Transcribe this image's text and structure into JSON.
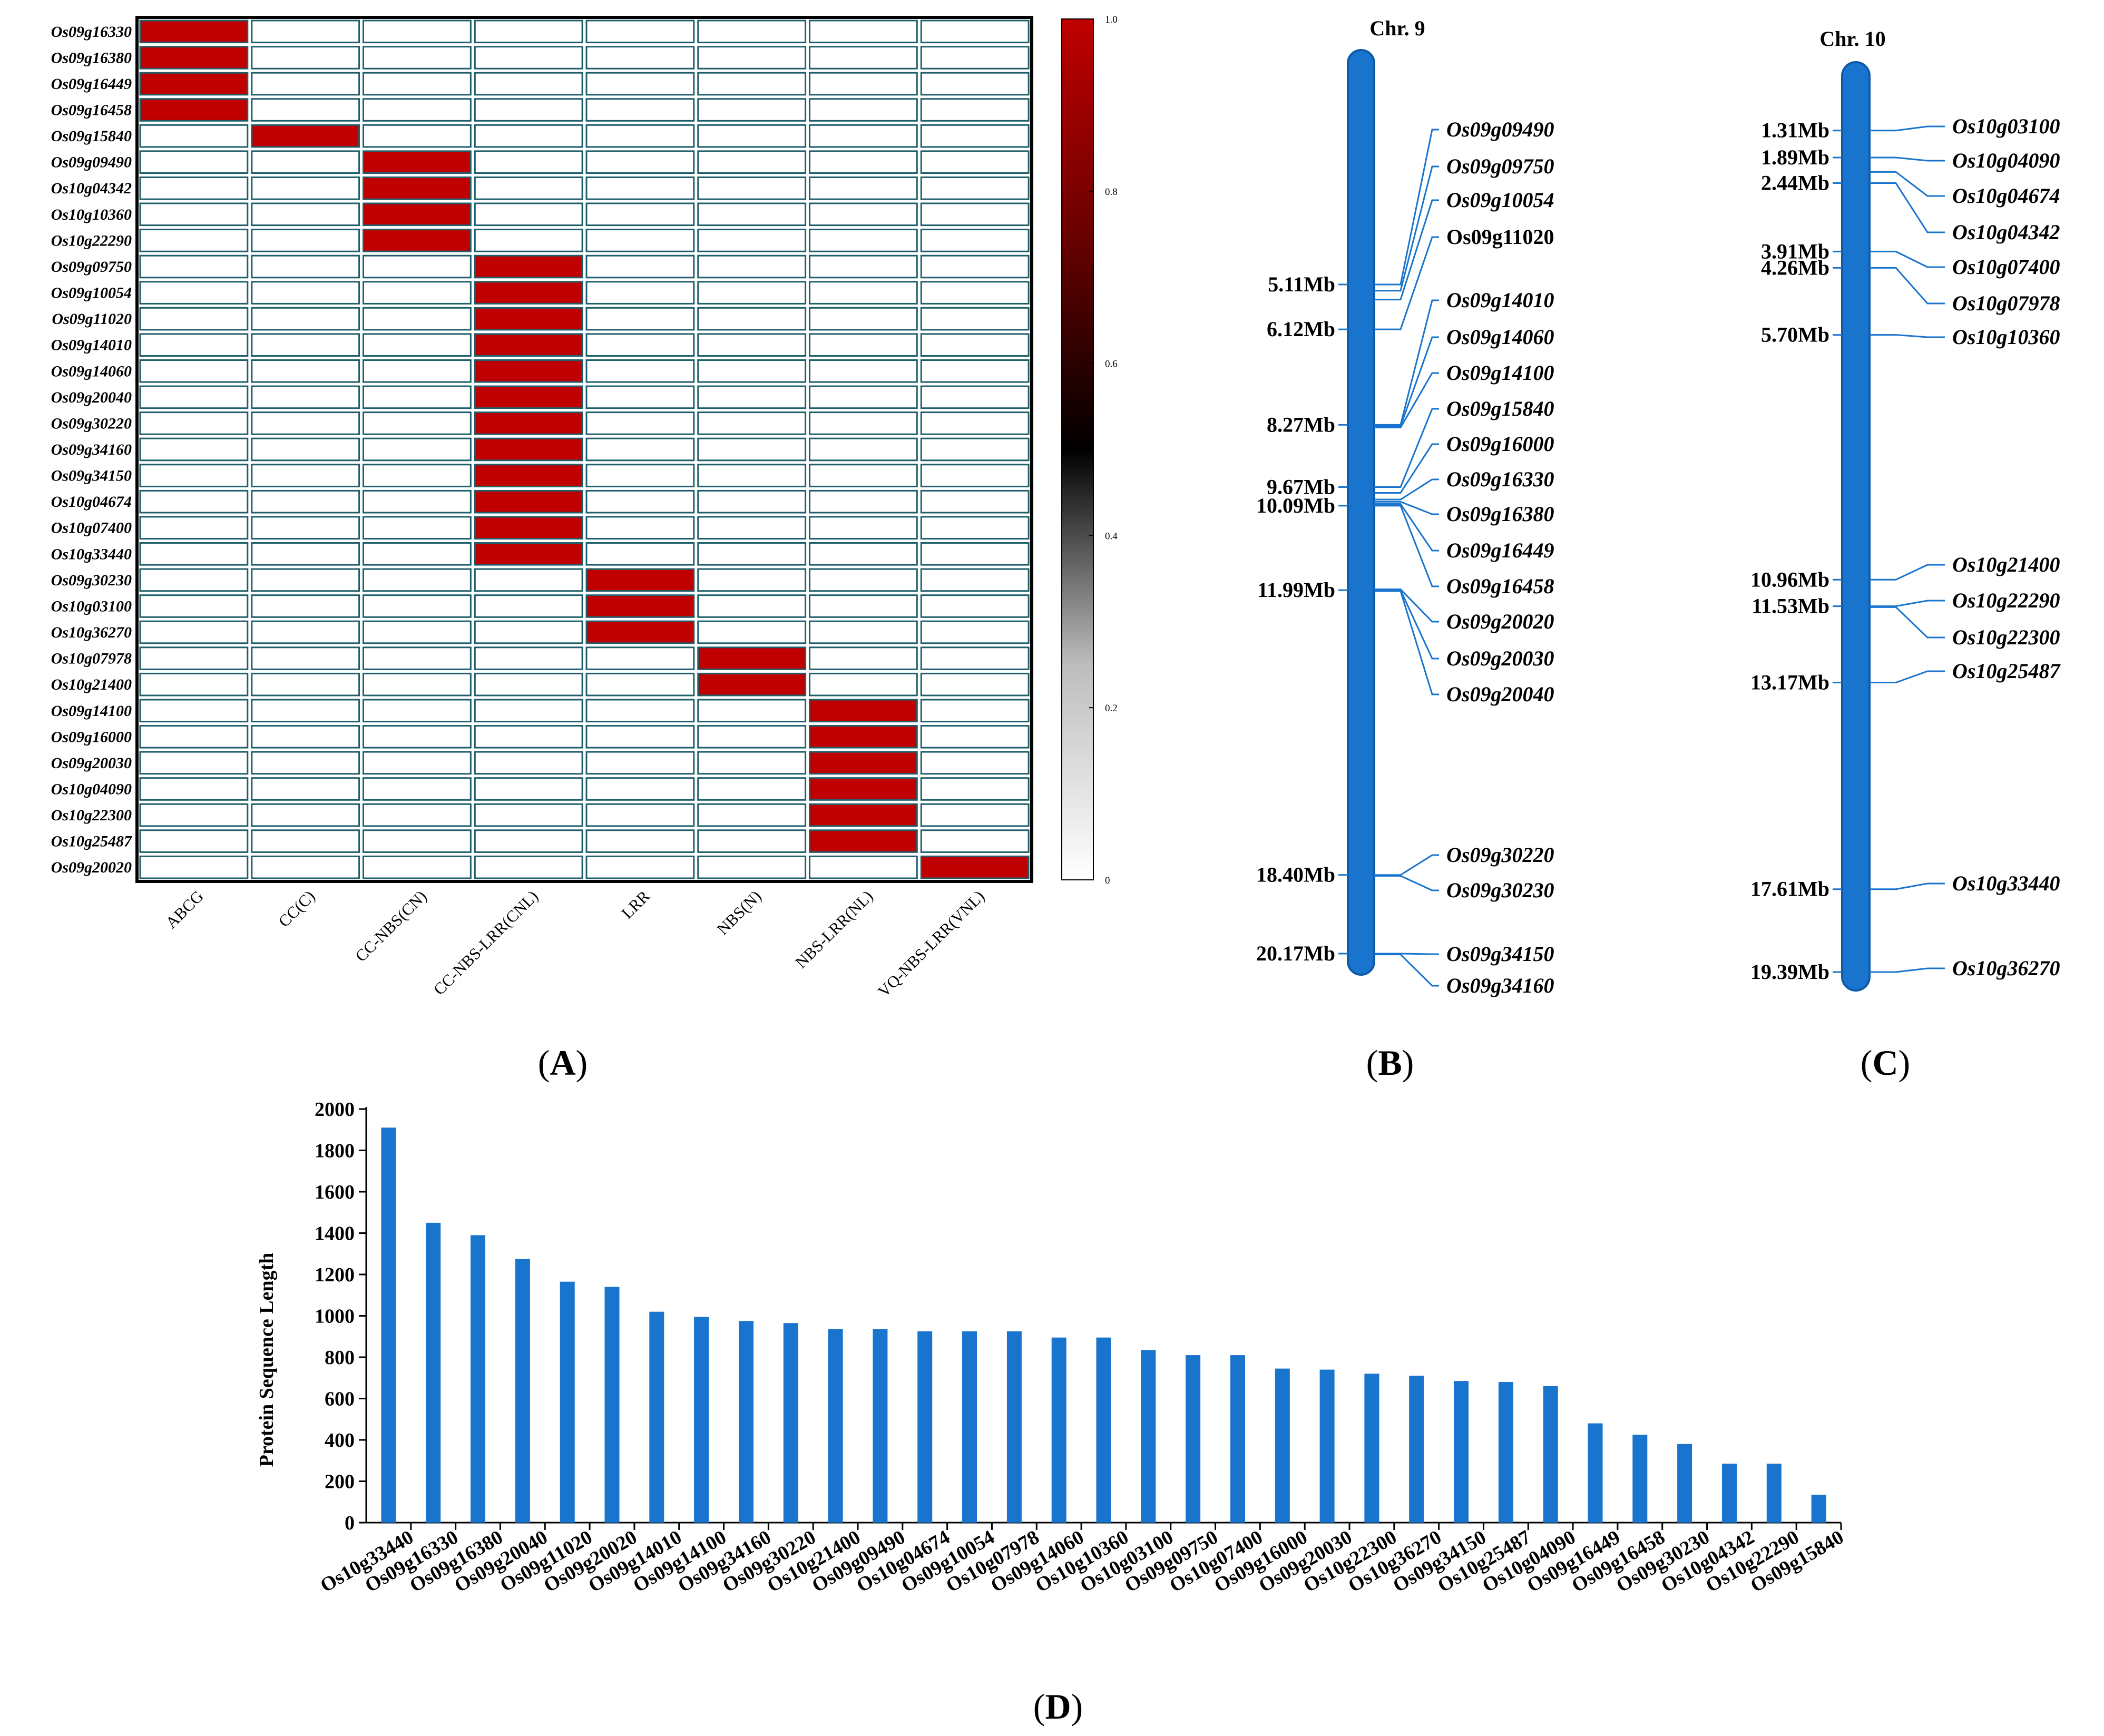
{
  "colors": {
    "red": "#c00000",
    "cell_border": "#1f5f6b",
    "chrom": "#1874cd",
    "chrom_edge": "#0e5aa7",
    "bar": "#1874cd",
    "black": "#000000"
  },
  "panel_labels": {
    "a": "A",
    "b": "B",
    "c": "C",
    "d": "D"
  },
  "chart_data": [
    {
      "type": "heatmap",
      "panel": "A",
      "rows": [
        "Os09g16330",
        "Os09g16380",
        "Os09g16449",
        "Os09g16458",
        "Os09g15840",
        "Os09g09490",
        "Os10g04342",
        "Os10g10360",
        "Os10g22290",
        "Os09g09750",
        "Os09g10054",
        "Os09g11020",
        "Os09g14010",
        "Os09g14060",
        "Os09g20040",
        "Os09g30220",
        "Os09g34160",
        "Os09g34150",
        "Os10g04674",
        "Os10g07400",
        "Os10g33440",
        "Os09g30230",
        "Os10g03100",
        "Os10g36270",
        "Os10g07978",
        "Os10g21400",
        "Os09g14100",
        "Os09g16000",
        "Os09g20030",
        "Os10g04090",
        "Os10g22300",
        "Os10g25487",
        "Os09g20020"
      ],
      "columns": [
        "ABCG",
        "CC(C)",
        "CC-NBS(CN)",
        "CC-NBS-LRR(CNL)",
        "LRR",
        "NBS(N)",
        "NBS-LRR(NL)",
        "VQ-NBS-LRR(VNL)"
      ],
      "row_class": [
        0,
        0,
        0,
        0,
        1,
        2,
        2,
        2,
        2,
        3,
        3,
        3,
        3,
        3,
        3,
        3,
        3,
        3,
        3,
        3,
        3,
        4,
        4,
        4,
        5,
        5,
        6,
        6,
        6,
        6,
        6,
        6,
        7
      ],
      "value_range": [
        0,
        1
      ],
      "colorbar_ticks": [
        "0",
        "0.2",
        "0.4",
        "0.6",
        "0.8",
        "1.0"
      ]
    },
    {
      "type": "chromosome-map",
      "panel": "B",
      "title": "Chr. 9",
      "length_mb": 21.2,
      "positions": [
        {
          "mb": 5.11,
          "label": "5.11Mb"
        },
        {
          "mb": 6.12,
          "label": "6.12Mb"
        },
        {
          "mb": 8.27,
          "label": "8.27Mb"
        },
        {
          "mb": 9.67,
          "label": "9.67Mb"
        },
        {
          "mb": 10.09,
          "label": "10.09Mb"
        },
        {
          "mb": 11.99,
          "label": "11.99Mb"
        },
        {
          "mb": 18.4,
          "label": "18.40Mb"
        },
        {
          "mb": 20.17,
          "label": "20.17Mb"
        }
      ],
      "genes": [
        {
          "name": "Os09g09490",
          "mb": 5.11,
          "italic": true
        },
        {
          "name": "Os09g09750",
          "mb": 5.25,
          "italic": true
        },
        {
          "name": "Os09g10054",
          "mb": 5.45,
          "italic": true
        },
        {
          "name": "Os09g11020",
          "mb": 6.12,
          "italic": false
        },
        {
          "name": "Os09g14010",
          "mb": 8.27,
          "italic": true
        },
        {
          "name": "Os09g14060",
          "mb": 8.3,
          "italic": true
        },
        {
          "name": "Os09g14100",
          "mb": 8.33,
          "italic": true
        },
        {
          "name": "Os09g15840",
          "mb": 9.67,
          "italic": true
        },
        {
          "name": "Os09g16000",
          "mb": 9.8,
          "italic": true
        },
        {
          "name": "Os09g16330",
          "mb": 9.95,
          "italic": true
        },
        {
          "name": "Os09g16380",
          "mb": 10.0,
          "italic": true
        },
        {
          "name": "Os09g16449",
          "mb": 10.05,
          "italic": true
        },
        {
          "name": "Os09g16458",
          "mb": 10.09,
          "italic": true
        },
        {
          "name": "Os09g20020",
          "mb": 11.97,
          "italic": true
        },
        {
          "name": "Os09g20030",
          "mb": 11.99,
          "italic": true
        },
        {
          "name": "Os09g20040",
          "mb": 12.01,
          "italic": true
        },
        {
          "name": "Os09g30220",
          "mb": 18.4,
          "italic": true
        },
        {
          "name": "Os09g30230",
          "mb": 18.42,
          "italic": true
        },
        {
          "name": "Os09g34150",
          "mb": 20.17,
          "italic": true
        },
        {
          "name": "Os09g34160",
          "mb": 20.19,
          "italic": true
        }
      ]
    },
    {
      "type": "chromosome-map",
      "panel": "C",
      "title": "Chr. 10",
      "length_mb": 20.2,
      "positions": [
        {
          "mb": 1.31,
          "label": "1.31Mb"
        },
        {
          "mb": 1.89,
          "label": "1.89Mb"
        },
        {
          "mb": 2.44,
          "label": "2.44Mb"
        },
        {
          "mb": 3.91,
          "label": "3.91Mb"
        },
        {
          "mb": 4.26,
          "label": "4.26Mb"
        },
        {
          "mb": 5.7,
          "label": "5.70Mb"
        },
        {
          "mb": 10.96,
          "label": "10.96Mb"
        },
        {
          "mb": 11.53,
          "label": "11.53Mb"
        },
        {
          "mb": 13.17,
          "label": "13.17Mb"
        },
        {
          "mb": 17.61,
          "label": "17.61Mb"
        },
        {
          "mb": 19.39,
          "label": "19.39Mb"
        }
      ],
      "genes": [
        {
          "name": "Os10g03100",
          "mb": 1.31,
          "italic": true
        },
        {
          "name": "Os10g04090",
          "mb": 1.89,
          "italic": true
        },
        {
          "name": "Os10g04674",
          "mb": 2.2,
          "italic": true
        },
        {
          "name": "Os10g04342",
          "mb": 2.44,
          "italic": true
        },
        {
          "name": "Os10g07400",
          "mb": 3.91,
          "italic": true
        },
        {
          "name": "Os10g07978",
          "mb": 4.26,
          "italic": true
        },
        {
          "name": "Os10g10360",
          "mb": 5.7,
          "italic": true
        },
        {
          "name": "Os10g21400",
          "mb": 10.96,
          "italic": true
        },
        {
          "name": "Os10g22290",
          "mb": 11.53,
          "italic": true
        },
        {
          "name": "Os10g22300",
          "mb": 11.55,
          "italic": true
        },
        {
          "name": "Os10g25487",
          "mb": 13.17,
          "italic": true
        },
        {
          "name": "Os10g33440",
          "mb": 17.61,
          "italic": true
        },
        {
          "name": "Os10g36270",
          "mb": 19.39,
          "italic": true
        }
      ]
    },
    {
      "type": "bar",
      "panel": "D",
      "ylabel": "Protein Sequence Length",
      "xlabel": "",
      "ylim": [
        0,
        2000
      ],
      "yticks": [
        0,
        200,
        400,
        600,
        800,
        1000,
        1200,
        1400,
        1600,
        1800,
        2000
      ],
      "categories": [
        "Os10g33440",
        "Os09g16330",
        "Os09g16380",
        "Os09g20040",
        "Os09g11020",
        "Os09g20020",
        "Os09g14010",
        "Os09g14100",
        "Os09g34160",
        "Os09g30220",
        "Os10g21400",
        "Os09g09490",
        "Os10g04674",
        "Os09g10054",
        "Os10g07978",
        "Os09g14060",
        "Os10g10360",
        "Os10g03100",
        "Os09g09750",
        "Os10g07400",
        "Os09g16000",
        "Os09g20030",
        "Os10g22300",
        "Os10g36270",
        "Os09g34150",
        "Os10g25487",
        "Os10g04090",
        "Os09g16449",
        "Os09g16458",
        "Os09g30230",
        "Os10g04342",
        "Os10g22290",
        "Os09g15840"
      ],
      "values": [
        1910,
        1450,
        1390,
        1275,
        1165,
        1140,
        1020,
        995,
        975,
        965,
        935,
        935,
        925,
        925,
        925,
        895,
        895,
        835,
        810,
        810,
        745,
        740,
        720,
        710,
        685,
        680,
        660,
        480,
        425,
        380,
        285,
        285,
        135
      ]
    }
  ]
}
